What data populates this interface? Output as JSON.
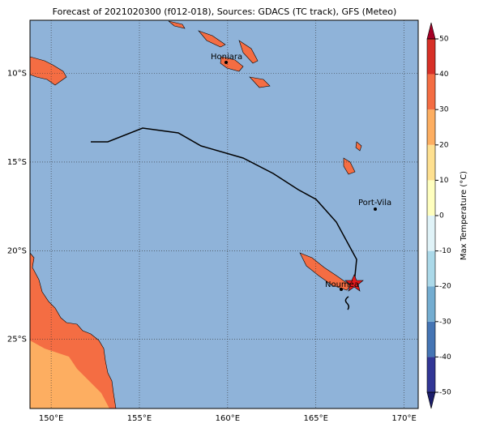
{
  "title": "Forecast of 2021020300 (f012-018), Sources: GDACS (TC track), GFS (Meteo)",
  "map": {
    "lonlim": [
      148.8,
      170.8
    ],
    "latlim": [
      -7,
      -28.9
    ],
    "lonticks": [
      {
        "value": 150,
        "label": "150°E"
      },
      {
        "value": 155,
        "label": "155°E"
      },
      {
        "value": 160,
        "label": "160°E"
      },
      {
        "value": 165,
        "label": "165°E"
      },
      {
        "value": 170,
        "label": "170°E"
      }
    ],
    "latticks": [
      {
        "value": -10,
        "label": "10°S"
      },
      {
        "value": -15,
        "label": "15°S"
      },
      {
        "value": -20,
        "label": "20°S"
      },
      {
        "value": -25,
        "label": "25°S"
      }
    ],
    "cities": [
      {
        "name": "Honiara"
      },
      {
        "name": "Port-Vila"
      },
      {
        "name": "Nouméa"
      }
    ]
  },
  "colorbar": {
    "label": "Max Temperature (°C)",
    "ticks": [
      -50,
      -40,
      -30,
      -20,
      -10,
      0,
      10,
      20,
      30,
      40,
      50
    ],
    "colors": [
      "#313695",
      "#4575b4",
      "#74add1",
      "#abd9e9",
      "#e0f3f8",
      "#ffffbf",
      "#fee090",
      "#fdae61",
      "#f46d43",
      "#d73027"
    ],
    "under_color": "#1c1e6b",
    "over_color": "#a50026"
  }
}
